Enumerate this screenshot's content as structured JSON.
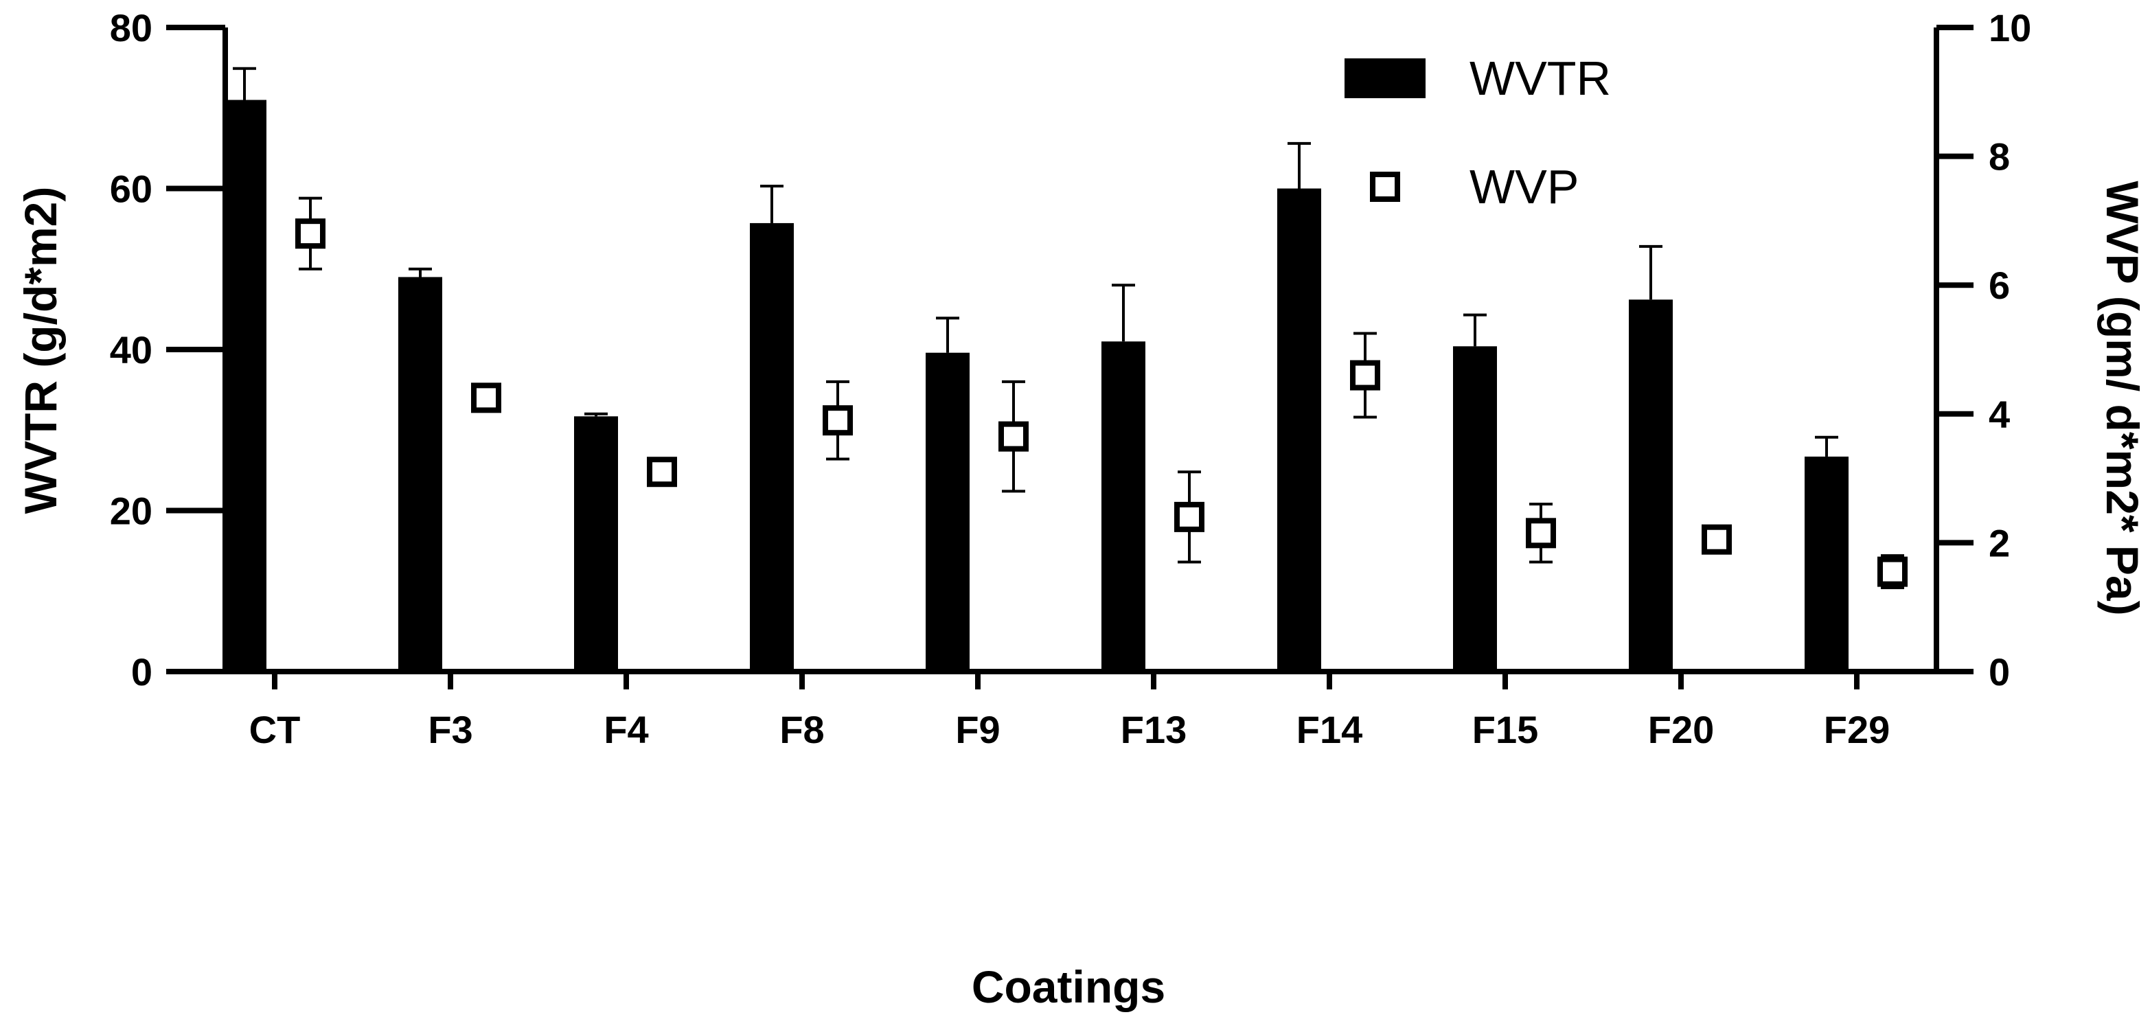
{
  "chart_data": {
    "type": "bar",
    "categories": [
      "CT",
      "F3",
      "F4",
      "F8",
      "F9",
      "F13",
      "F14",
      "F15",
      "F20",
      "F29"
    ],
    "xlabel": "Coatings",
    "ylabel": "WVTR (g/d*m2)",
    "y2label": "WVP (gm/ d*m2* Pa)",
    "ylim": [
      0,
      80
    ],
    "yticks": [
      0,
      20,
      40,
      60,
      80
    ],
    "y2lim": [
      0,
      10
    ],
    "y2ticks": [
      0,
      2,
      4,
      6,
      8,
      10
    ],
    "legend_position": "top-right",
    "series": [
      {
        "name": "WVTR",
        "axis": "left",
        "style": "bar",
        "color": "#000000",
        "values": [
          71,
          49,
          31.7,
          55.7,
          39.6,
          41,
          60,
          40.4,
          46.2,
          26.7
        ],
        "errors": [
          3.9,
          1,
          0.3,
          4.6,
          4.3,
          7,
          5.6,
          3.9,
          6.6,
          2.4
        ]
      },
      {
        "name": "WVP",
        "axis": "right",
        "style": "open-square",
        "color": "#000000",
        "values": [
          6.8,
          4.25,
          3.1,
          3.9,
          3.65,
          2.4,
          4.6,
          2.15,
          2.05,
          1.55
        ],
        "errors": [
          0.55,
          0.15,
          0.08,
          0.6,
          0.85,
          0.7,
          0.65,
          0.45,
          0.1,
          0.25
        ]
      }
    ]
  }
}
